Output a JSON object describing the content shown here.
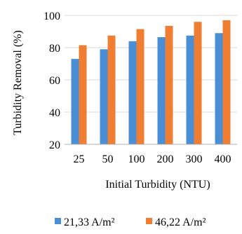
{
  "chart_data": {
    "type": "bar",
    "categories": [
      "25",
      "50",
      "100",
      "200",
      "300",
      "400"
    ],
    "series": [
      {
        "name": "21,33 A/m²",
        "color": "#4a8fd6",
        "values": [
          73,
          79,
          84,
          86.5,
          87.5,
          89
        ]
      },
      {
        "name": "46,22 A/m²",
        "color": "#ef7d32",
        "values": [
          81.5,
          87.5,
          91.5,
          93.5,
          96,
          97
        ]
      }
    ],
    "xlabel": "Initial Turbidity (NTU)",
    "ylabel": "Turbidity Removal  (%)",
    "ylim": [
      20,
      100
    ],
    "yticks": [
      "20",
      "40",
      "60",
      "80",
      "100"
    ],
    "grid": true,
    "legend_position": "bottom"
  }
}
